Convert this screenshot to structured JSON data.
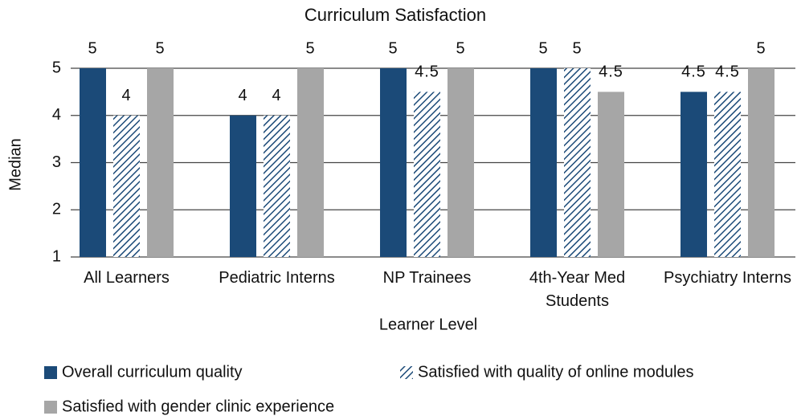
{
  "chart_data": {
    "type": "bar",
    "title": "Curriculum Satisfaction",
    "x_label": "Learner Level",
    "y_label": "Median",
    "categories": [
      "All Learners",
      "Pediatric Interns",
      "NP Trainees",
      "4th-Year Med Students",
      "Psychiatry Interns"
    ],
    "series": [
      {
        "name": "Overall curriculum quality",
        "color": "#1b4a78",
        "values": [
          5,
          4,
          5,
          5,
          4.5
        ]
      },
      {
        "name": "Satisfied with quality of online modules",
        "color": "#1b4a78",
        "hatch": true,
        "values": [
          4,
          4,
          4.5,
          5,
          4.5
        ]
      },
      {
        "name": "Satisfied with gender clinic experience",
        "color": "#a6a6a6",
        "values": [
          5,
          5,
          5,
          4.5,
          5
        ]
      }
    ],
    "ylim": [
      1,
      5
    ],
    "yticks": [
      1,
      2,
      3,
      4,
      5
    ],
    "grid": true,
    "legend": "bottom"
  }
}
